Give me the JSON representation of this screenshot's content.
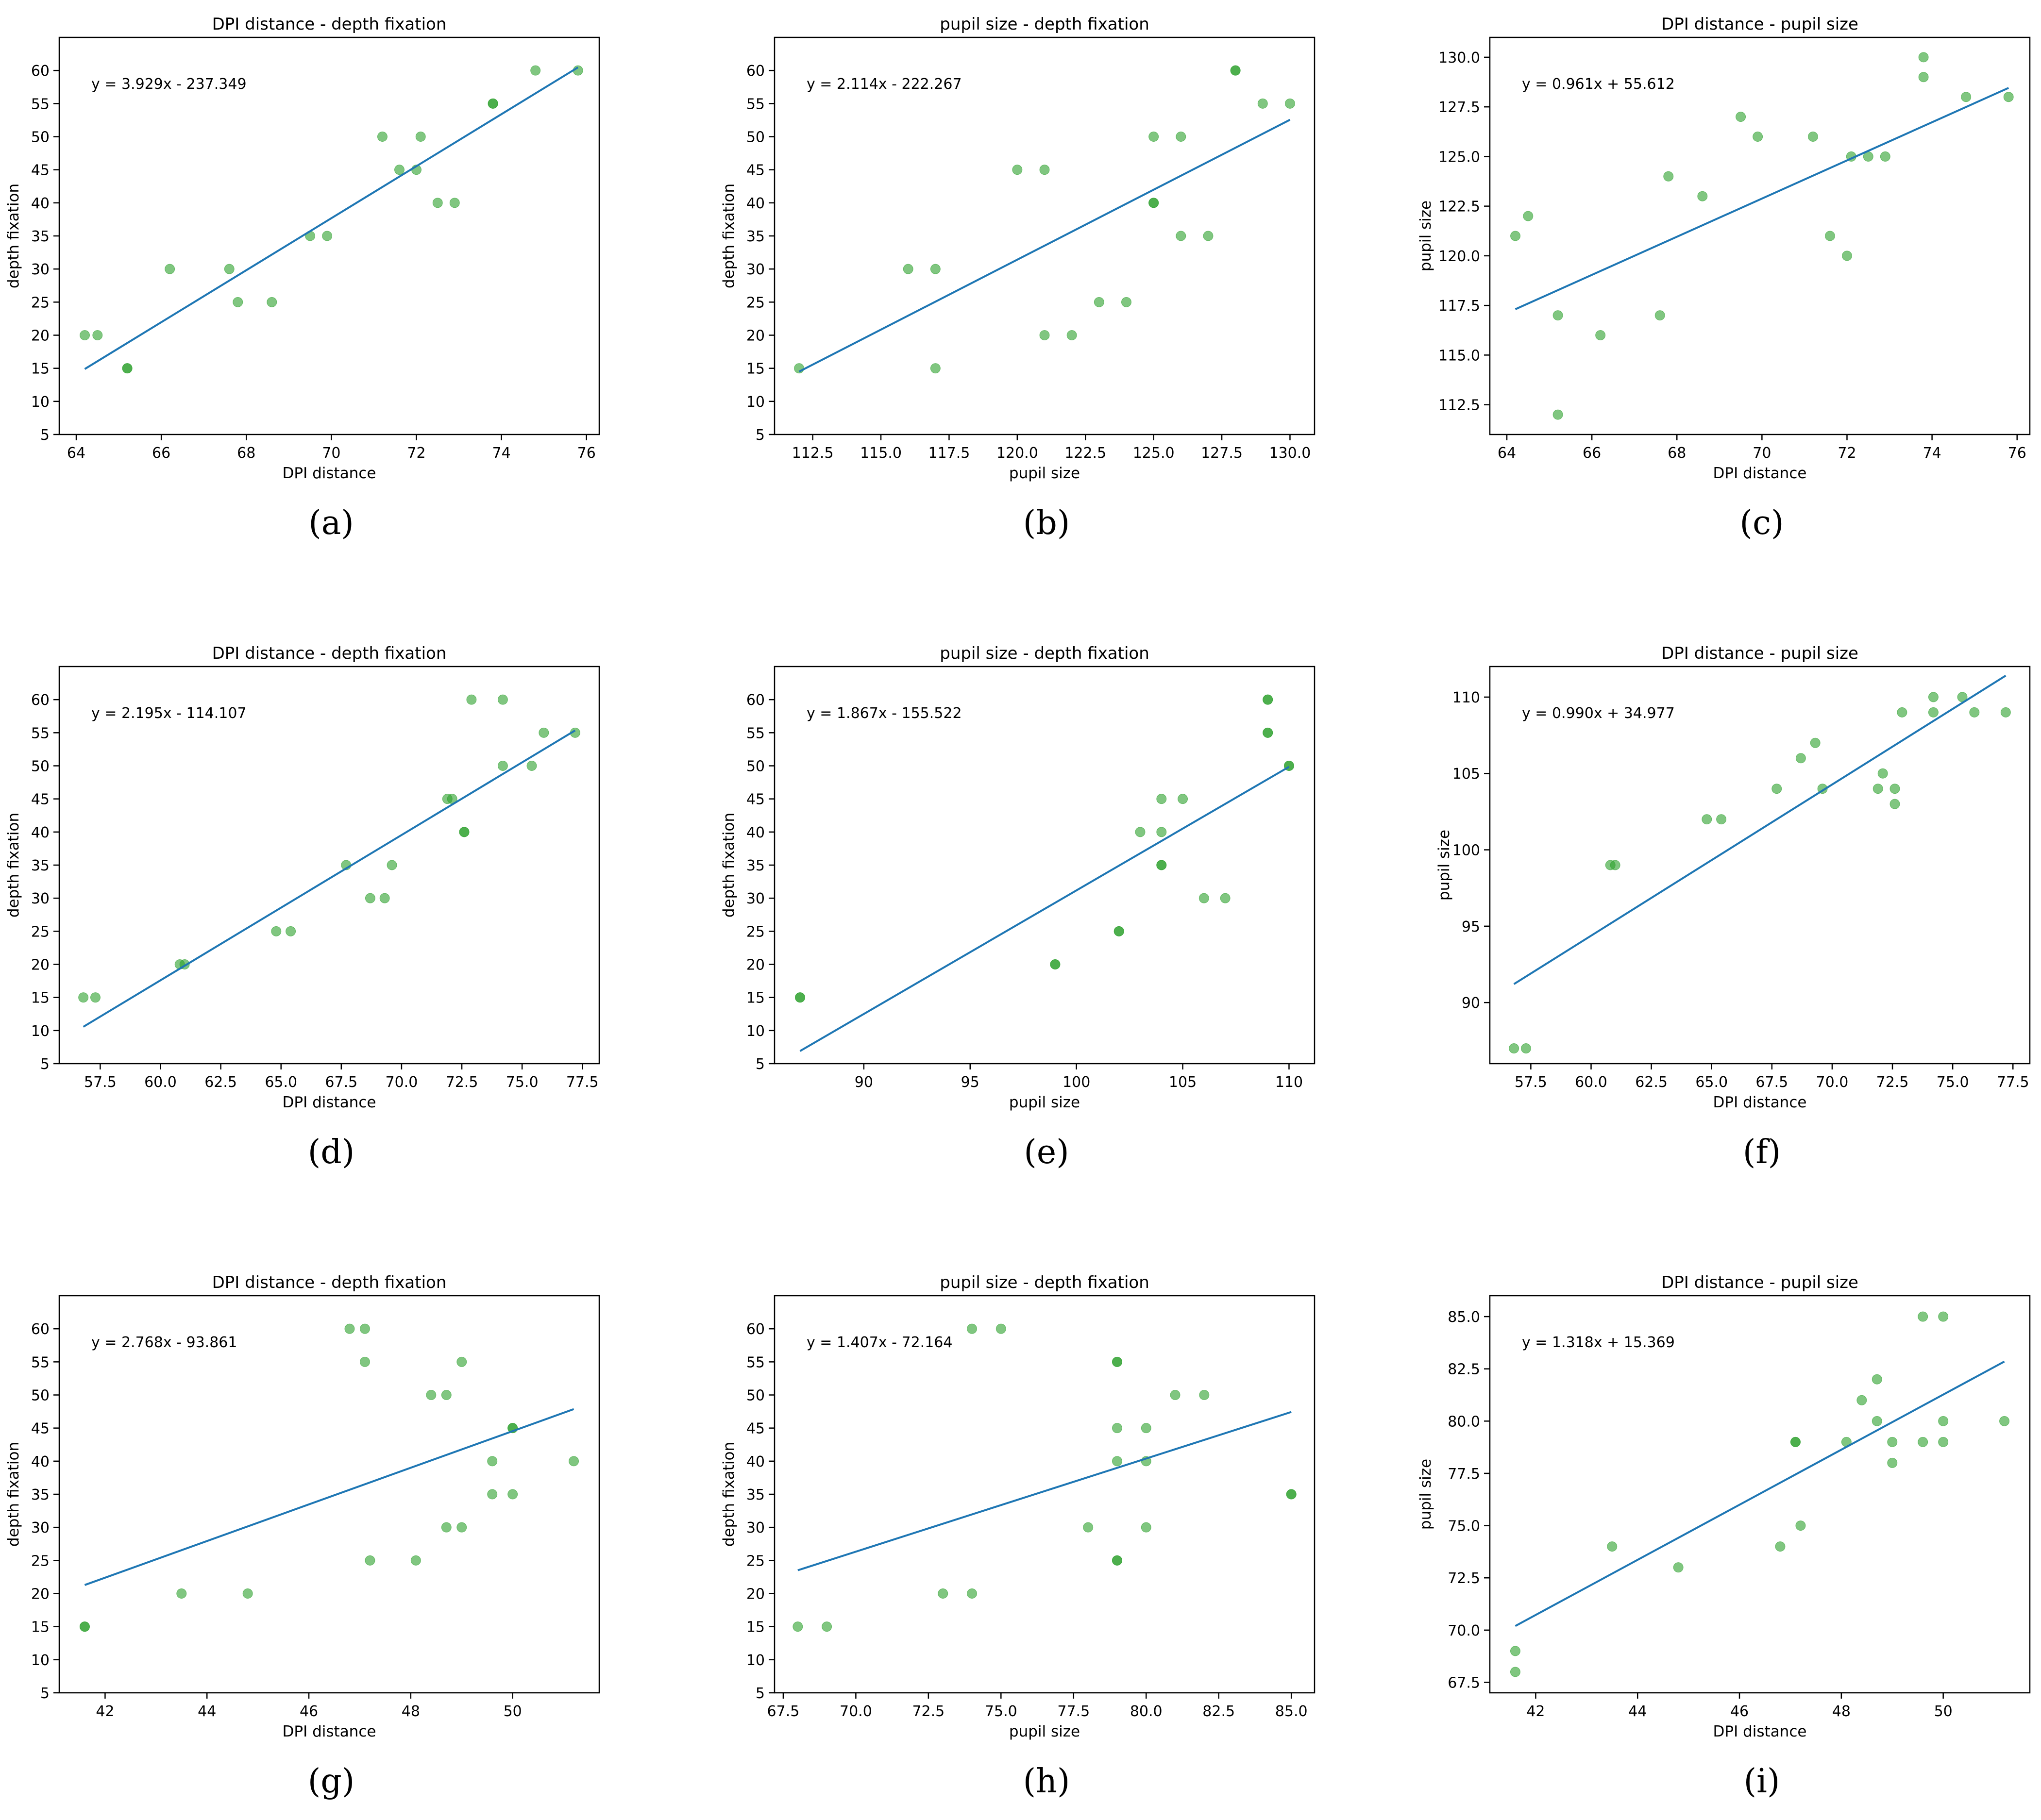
{
  "chart_data": [
    {
      "type": "scatter",
      "title": "DPI distance - depth fixation",
      "xlabel": "DPI distance",
      "ylabel": "depth fixation",
      "panel": "(a)",
      "equation": "y =  3.929x -  237.349",
      "xlim": [
        63.6,
        76.3
      ],
      "ylim": [
        5,
        65
      ],
      "xticks": [
        64,
        66,
        68,
        70,
        72,
        74,
        76
      ],
      "xtick_labels": [
        "64",
        "66",
        "68",
        "70",
        "72",
        "74",
        "76"
      ],
      "yticks": [
        5,
        10,
        15,
        20,
        25,
        30,
        35,
        40,
        45,
        50,
        55,
        60
      ],
      "ytick_labels": [
        "5",
        "10",
        "15",
        "20",
        "25",
        "30",
        "35",
        "40",
        "45",
        "50",
        "55",
        "60"
      ],
      "x": [
        64.2,
        64.5,
        65.2,
        65.2,
        66.2,
        67.6,
        67.8,
        68.6,
        69.5,
        69.9,
        71.2,
        71.6,
        72.0,
        72.1,
        72.5,
        72.9,
        73.8,
        73.8,
        74.8,
        75.8
      ],
      "y": [
        20,
        20,
        15,
        15,
        30,
        30,
        25,
        25,
        35,
        35,
        50,
        45,
        45,
        50,
        40,
        40,
        55,
        55,
        60,
        60
      ],
      "fit": {
        "slope": 3.929,
        "intercept": -237.349,
        "x_range": [
          64.2,
          75.8
        ]
      }
    },
    {
      "type": "scatter",
      "title": "pupil size - depth fixation",
      "xlabel": "pupil size",
      "ylabel": "depth fixation",
      "panel": "(b)",
      "equation": "y =  2.114x -  222.267",
      "xlim": [
        111.1,
        130.9
      ],
      "ylim": [
        5,
        65
      ],
      "xticks": [
        112.5,
        115,
        117.5,
        120,
        122.5,
        125,
        127.5,
        130
      ],
      "xtick_labels": [
        "112.5",
        "115.0",
        "117.5",
        "120.0",
        "122.5",
        "125.0",
        "127.5",
        "130.0"
      ],
      "yticks": [
        5,
        10,
        15,
        20,
        25,
        30,
        35,
        40,
        45,
        50,
        55,
        60
      ],
      "ytick_labels": [
        "5",
        "10",
        "15",
        "20",
        "25",
        "30",
        "35",
        "40",
        "45",
        "50",
        "55",
        "60"
      ],
      "x": [
        112,
        116,
        117,
        117,
        120,
        121,
        121,
        122,
        123,
        124,
        125,
        125,
        125,
        126,
        126,
        127,
        128,
        128,
        129,
        130
      ],
      "y": [
        15,
        30,
        30,
        15,
        45,
        45,
        20,
        20,
        25,
        25,
        50,
        40,
        40,
        50,
        35,
        35,
        60,
        60,
        55,
        55
      ],
      "fit": {
        "slope": 2.114,
        "intercept": -222.267,
        "x_range": [
          112,
          130
        ]
      }
    },
    {
      "type": "scatter",
      "title": "DPI distance - pupil size",
      "xlabel": "DPI distance",
      "ylabel": "pupil size",
      "panel": "(c)",
      "equation": "y =  0.961x +  55.612",
      "xlim": [
        63.6,
        76.3
      ],
      "ylim": [
        111,
        131
      ],
      "xticks": [
        64,
        66,
        68,
        70,
        72,
        74,
        76
      ],
      "xtick_labels": [
        "64",
        "66",
        "68",
        "70",
        "72",
        "74",
        "76"
      ],
      "yticks": [
        112.5,
        115,
        117.5,
        120,
        122.5,
        125,
        127.5,
        130
      ],
      "ytick_labels": [
        "112.5",
        "115.0",
        "117.5",
        "120.0",
        "122.5",
        "125.0",
        "127.5",
        "130.0"
      ],
      "x": [
        64.2,
        64.5,
        65.2,
        65.2,
        66.2,
        67.6,
        67.8,
        68.6,
        69.5,
        69.9,
        71.2,
        71.6,
        72.0,
        72.1,
        72.5,
        72.9,
        73.8,
        73.8,
        74.8,
        75.8
      ],
      "y": [
        121,
        122,
        117,
        112,
        116,
        117,
        124,
        123,
        127,
        126,
        126,
        121,
        120,
        125,
        125,
        125,
        130,
        129,
        128,
        128
      ],
      "fit": {
        "slope": 0.961,
        "intercept": 55.612,
        "x_range": [
          64.2,
          75.8
        ]
      }
    },
    {
      "type": "scatter",
      "title": "DPI distance - depth fixation",
      "xlabel": "DPI distance",
      "ylabel": "depth fixation",
      "panel": "(d)",
      "equation": "y =  2.195x -  114.107",
      "xlim": [
        55.8,
        78.2
      ],
      "ylim": [
        5,
        65
      ],
      "xticks": [
        57.5,
        60,
        62.5,
        65,
        67.5,
        70,
        72.5,
        75,
        77.5
      ],
      "xtick_labels": [
        "57.5",
        "60.0",
        "62.5",
        "65.0",
        "67.5",
        "70.0",
        "72.5",
        "75.0",
        "77.5"
      ],
      "yticks": [
        5,
        10,
        15,
        20,
        25,
        30,
        35,
        40,
        45,
        50,
        55,
        60
      ],
      "ytick_labels": [
        "5",
        "10",
        "15",
        "20",
        "25",
        "30",
        "35",
        "40",
        "45",
        "50",
        "55",
        "60"
      ],
      "x": [
        56.8,
        57.3,
        60.8,
        61.0,
        64.8,
        65.4,
        67.7,
        68.7,
        69.3,
        69.6,
        71.9,
        72.1,
        72.6,
        72.6,
        72.9,
        74.2,
        74.2,
        75.4,
        75.9,
        77.2
      ],
      "y": [
        15,
        15,
        20,
        20,
        25,
        25,
        35,
        30,
        30,
        35,
        45,
        45,
        40,
        40,
        60,
        60,
        50,
        50,
        55,
        55
      ],
      "fit": {
        "slope": 2.195,
        "intercept": -114.107,
        "x_range": [
          56.8,
          77.2
        ]
      }
    },
    {
      "type": "scatter",
      "title": "pupil size - depth fixation",
      "xlabel": "pupil size",
      "ylabel": "depth fixation",
      "panel": "(e)",
      "equation": "y =  1.867x -  155.522",
      "xlim": [
        85.8,
        111.2
      ],
      "ylim": [
        5,
        65
      ],
      "xticks": [
        90,
        95,
        100,
        105,
        110
      ],
      "xtick_labels": [
        "90",
        "95",
        "100",
        "105",
        "110"
      ],
      "yticks": [
        5,
        10,
        15,
        20,
        25,
        30,
        35,
        40,
        45,
        50,
        55,
        60
      ],
      "ytick_labels": [
        "5",
        "10",
        "15",
        "20",
        "25",
        "30",
        "35",
        "40",
        "45",
        "50",
        "55",
        "60"
      ],
      "x": [
        87,
        87,
        99,
        99,
        102,
        102,
        103,
        104,
        104,
        104,
        104,
        105,
        106,
        107,
        109,
        109,
        109,
        109,
        110,
        110
      ],
      "y": [
        15,
        15,
        20,
        20,
        25,
        25,
        40,
        45,
        40,
        35,
        35,
        45,
        30,
        30,
        60,
        60,
        55,
        55,
        50,
        50
      ],
      "fit": {
        "slope": 1.867,
        "intercept": -155.522,
        "x_range": [
          87,
          110
        ]
      }
    },
    {
      "type": "scatter",
      "title": "DPI distance - pupil size",
      "xlabel": "DPI distance",
      "ylabel": "pupil size",
      "panel": "(f)",
      "equation": "y =  0.990x +  34.977",
      "xlim": [
        55.8,
        78.2
      ],
      "ylim": [
        86,
        112
      ],
      "xticks": [
        57.5,
        60,
        62.5,
        65,
        67.5,
        70,
        72.5,
        75,
        77.5
      ],
      "xtick_labels": [
        "57.5",
        "60.0",
        "62.5",
        "65.0",
        "67.5",
        "70.0",
        "72.5",
        "75.0",
        "77.5"
      ],
      "yticks": [
        90,
        95,
        100,
        105,
        110
      ],
      "ytick_labels": [
        "90",
        "95",
        "100",
        "105",
        "110"
      ],
      "x": [
        56.8,
        57.3,
        60.8,
        61.0,
        64.8,
        65.4,
        67.7,
        68.7,
        69.3,
        69.6,
        71.9,
        72.1,
        72.6,
        72.6,
        72.9,
        74.2,
        74.2,
        75.4,
        75.9,
        77.2
      ],
      "y": [
        87,
        87,
        99,
        99,
        102,
        102,
        104,
        106,
        107,
        104,
        104,
        105,
        104,
        103,
        109,
        110,
        109,
        110,
        109,
        109
      ],
      "fit": {
        "slope": 0.99,
        "intercept": 34.977,
        "x_range": [
          56.8,
          77.2
        ]
      }
    },
    {
      "type": "scatter",
      "title": "DPI distance - depth fixation",
      "xlabel": "DPI distance",
      "ylabel": "depth fixation",
      "panel": "(g)",
      "equation": "y =  2.768x -  93.861",
      "xlim": [
        41.1,
        51.7
      ],
      "ylim": [
        5,
        65
      ],
      "xticks": [
        42,
        44,
        46,
        48,
        50
      ],
      "xtick_labels": [
        "42",
        "44",
        "46",
        "48",
        "50"
      ],
      "yticks": [
        5,
        10,
        15,
        20,
        25,
        30,
        35,
        40,
        45,
        50,
        55,
        60
      ],
      "ytick_labels": [
        "5",
        "10",
        "15",
        "20",
        "25",
        "30",
        "35",
        "40",
        "45",
        "50",
        "55",
        "60"
      ],
      "x": [
        41.6,
        41.6,
        43.5,
        44.8,
        46.8,
        47.1,
        47.1,
        47.2,
        48.1,
        48.4,
        48.7,
        48.7,
        49.0,
        49.0,
        49.6,
        49.6,
        50.0,
        50.0,
        50.0,
        51.2
      ],
      "y": [
        15,
        15,
        20,
        20,
        60,
        60,
        55,
        25,
        25,
        50,
        50,
        30,
        55,
        30,
        40,
        35,
        35,
        45,
        45,
        40
      ],
      "fit": {
        "slope": 2.768,
        "intercept": -93.861,
        "x_range": [
          41.6,
          51.2
        ]
      }
    },
    {
      "type": "scatter",
      "title": "pupil size - depth fixation",
      "xlabel": "pupil size",
      "ylabel": "depth fixation",
      "panel": "(h)",
      "equation": "y =  1.407x -  72.164",
      "xlim": [
        67.2,
        85.8
      ],
      "ylim": [
        5,
        65
      ],
      "xticks": [
        67.5,
        70,
        72.5,
        75,
        77.5,
        80,
        82.5,
        85
      ],
      "xtick_labels": [
        "67.5",
        "70.0",
        "72.5",
        "75.0",
        "77.5",
        "80.0",
        "82.5",
        "85.0"
      ],
      "yticks": [
        5,
        10,
        15,
        20,
        25,
        30,
        35,
        40,
        45,
        50,
        55,
        60
      ],
      "ytick_labels": [
        "5",
        "10",
        "15",
        "20",
        "25",
        "30",
        "35",
        "40",
        "45",
        "50",
        "55",
        "60"
      ],
      "x": [
        68,
        69,
        73,
        74,
        74,
        75,
        78,
        79,
        79,
        79,
        79,
        79,
        79,
        80,
        80,
        80,
        81,
        82,
        85,
        85
      ],
      "y": [
        15,
        15,
        20,
        20,
        60,
        60,
        30,
        55,
        55,
        45,
        40,
        25,
        25,
        45,
        40,
        30,
        50,
        50,
        35,
        35
      ],
      "fit": {
        "slope": 1.407,
        "intercept": -72.164,
        "x_range": [
          68,
          85
        ]
      }
    },
    {
      "type": "scatter",
      "title": "DPI distance - pupil size",
      "xlabel": "DPI distance",
      "ylabel": "pupil size",
      "panel": "(i)",
      "equation": "y =  1.318x +  15.369",
      "xlim": [
        41.1,
        51.7
      ],
      "ylim": [
        67,
        86
      ],
      "xticks": [
        42,
        44,
        46,
        48,
        50
      ],
      "xtick_labels": [
        "42",
        "44",
        "46",
        "48",
        "50"
      ],
      "yticks": [
        67.5,
        70,
        72.5,
        75,
        77.5,
        80,
        82.5,
        85
      ],
      "ytick_labels": [
        "67.5",
        "70.0",
        "72.5",
        "75.0",
        "77.5",
        "80.0",
        "82.5",
        "85.0"
      ],
      "x": [
        41.6,
        41.6,
        43.5,
        44.8,
        46.8,
        47.1,
        47.1,
        47.2,
        48.1,
        48.4,
        48.7,
        48.7,
        49.0,
        49.0,
        49.6,
        49.6,
        50.0,
        50.0,
        50.0,
        51.2
      ],
      "y": [
        69,
        68,
        74,
        73,
        74,
        79,
        79,
        75,
        79,
        81,
        82,
        80,
        79,
        78,
        85,
        79,
        85,
        80,
        79,
        80
      ],
      "fit": {
        "slope": 1.318,
        "intercept": 15.369,
        "x_range": [
          41.6,
          51.2
        ]
      }
    }
  ],
  "colors": {
    "points": "#2ca02c",
    "fit_line": "#1f77b4",
    "axis": "#000000"
  }
}
